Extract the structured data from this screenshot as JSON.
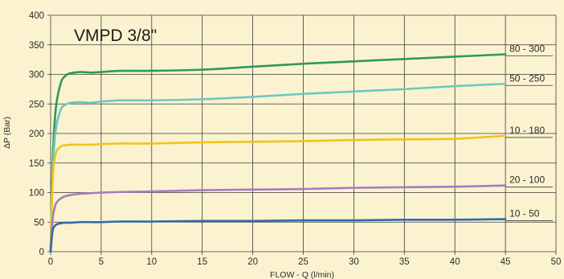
{
  "chart_data": {
    "type": "line",
    "title": "VMPD 3/8\"",
    "xlabel": "FLOW - Q (l/min)",
    "ylabel": "ΔP (Bar)",
    "xlim": [
      0,
      50
    ],
    "ylim": [
      0,
      400
    ],
    "xticks": [
      0,
      5,
      10,
      15,
      20,
      25,
      30,
      35,
      40,
      45,
      50
    ],
    "yticks": [
      0,
      50,
      100,
      150,
      200,
      250,
      300,
      350,
      400
    ],
    "grid": true,
    "legend": "labels at line ends (right)",
    "series": [
      {
        "name": "80 - 300",
        "color": "#2E9A57",
        "x": [
          0,
          0.2,
          0.5,
          1,
          1.5,
          2,
          3,
          4,
          5,
          7,
          10,
          15,
          20,
          25,
          30,
          35,
          40,
          45
        ],
        "y": [
          0,
          150,
          240,
          285,
          298,
          302,
          304,
          303,
          304,
          306,
          306,
          308,
          313,
          318,
          322,
          326,
          330,
          334
        ]
      },
      {
        "name": "50 - 250",
        "color": "#6CC9C2",
        "x": [
          0,
          0.2,
          0.5,
          1,
          1.5,
          2,
          3,
          4,
          5,
          7,
          10,
          15,
          20,
          25,
          30,
          35,
          40,
          45
        ],
        "y": [
          0,
          130,
          205,
          240,
          249,
          252,
          253,
          252,
          254,
          256,
          256,
          258,
          262,
          267,
          271,
          275,
          280,
          284
        ]
      },
      {
        "name": "10 - 180",
        "color": "#F2C21B",
        "x": [
          0,
          0.2,
          0.5,
          1,
          1.5,
          2,
          3,
          4,
          5,
          7,
          10,
          15,
          20,
          25,
          30,
          35,
          40,
          45
        ],
        "y": [
          0,
          120,
          165,
          178,
          180,
          181,
          181,
          181,
          182,
          183,
          183,
          185,
          186,
          187,
          189,
          190,
          191,
          196
        ]
      },
      {
        "name": "20 - 100",
        "color": "#A77BC3",
        "x": [
          0,
          0.2,
          0.5,
          1,
          1.5,
          2,
          3,
          4,
          5,
          7,
          10,
          15,
          20,
          25,
          30,
          35,
          40,
          45
        ],
        "y": [
          0,
          55,
          80,
          90,
          94,
          96,
          98,
          99,
          100,
          101,
          102,
          104,
          105,
          106,
          108,
          109,
          110,
          112
        ]
      },
      {
        "name": "10 - 50",
        "color": "#2F6AAE",
        "x": [
          0,
          0.2,
          0.5,
          1,
          1.5,
          2,
          3,
          4,
          5,
          7,
          10,
          15,
          20,
          25,
          30,
          35,
          40,
          45
        ],
        "y": [
          0,
          35,
          45,
          48,
          49,
          49,
          50,
          50,
          50,
          51,
          51,
          52,
          52,
          53,
          53,
          54,
          54,
          55
        ]
      }
    ]
  },
  "colors": {
    "background": "#FBF3D0",
    "grid": "#3a3a3a",
    "label_line": "#3a3a3a"
  }
}
